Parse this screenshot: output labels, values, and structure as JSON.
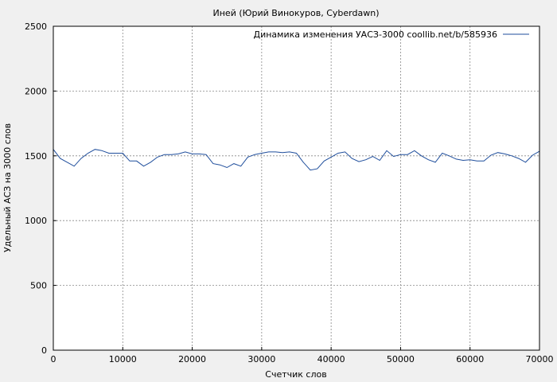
{
  "chart_data": {
    "type": "line",
    "title": "Иней (Юрий Винокуров,  Cyberdawn)",
    "xlabel": "Счетчик слов",
    "ylabel": "Удельный АСЗ на 3000 слов",
    "xlim": [
      0,
      70000
    ],
    "ylim": [
      0,
      2500
    ],
    "x_ticks": [
      0,
      10000,
      20000,
      30000,
      40000,
      50000,
      60000,
      70000
    ],
    "y_ticks": [
      0,
      500,
      1000,
      1500,
      2000,
      2500
    ],
    "grid": true,
    "legend_position": "top-right",
    "series": [
      {
        "name": "Динамика изменения УАСЗ-3000 coollib.net/b/585936",
        "color": "#1f4e9c",
        "x": [
          0,
          1000,
          2000,
          3000,
          4000,
          5000,
          6000,
          7000,
          8000,
          9000,
          10000,
          11000,
          12000,
          13000,
          14000,
          15000,
          16000,
          17000,
          18000,
          19000,
          20000,
          21000,
          22000,
          23000,
          24000,
          25000,
          26000,
          27000,
          28000,
          29000,
          30000,
          31000,
          32000,
          33000,
          34000,
          35000,
          36000,
          37000,
          38000,
          39000,
          40000,
          41000,
          42000,
          43000,
          44000,
          45000,
          46000,
          47000,
          48000,
          49000,
          50000,
          51000,
          52000,
          53000,
          54000,
          55000,
          56000,
          57000,
          58000,
          59000,
          60000,
          61000,
          62000,
          63000,
          64000,
          65000,
          66000,
          67000,
          68000,
          69000,
          70000
        ],
        "y": [
          1550,
          1480,
          1450,
          1420,
          1480,
          1520,
          1550,
          1540,
          1520,
          1520,
          1520,
          1460,
          1460,
          1420,
          1450,
          1490,
          1510,
          1510,
          1515,
          1530,
          1515,
          1515,
          1510,
          1440,
          1430,
          1410,
          1440,
          1420,
          1490,
          1510,
          1520,
          1530,
          1530,
          1525,
          1530,
          1520,
          1450,
          1390,
          1400,
          1460,
          1490,
          1520,
          1530,
          1480,
          1455,
          1470,
          1495,
          1465,
          1540,
          1495,
          1510,
          1510,
          1540,
          1500,
          1470,
          1450,
          1520,
          1500,
          1475,
          1465,
          1470,
          1460,
          1460,
          1505,
          1525,
          1515,
          1500,
          1480,
          1450,
          1505,
          1535
        ]
      }
    ]
  }
}
